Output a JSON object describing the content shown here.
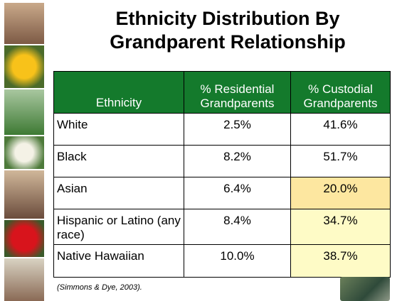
{
  "title": "Ethnicity Distribution By Grandparent Relationship",
  "table": {
    "header": [
      "Ethnicity",
      "% Residential Grandparents",
      "% Custodial Grandparents"
    ],
    "rows": [
      [
        "White",
        "2.5%",
        "41.6%"
      ],
      [
        "Black",
        "8.2%",
        "51.7%"
      ],
      [
        "Asian",
        "6.4%",
        "20.0%"
      ],
      [
        "Hispanic or Latino (any race)",
        "8.4%",
        "34.7%"
      ],
      [
        "Native Hawaiian",
        "10.0%",
        "38.7%"
      ]
    ]
  },
  "citation": "(Simmons & Dye, 2003)."
}
